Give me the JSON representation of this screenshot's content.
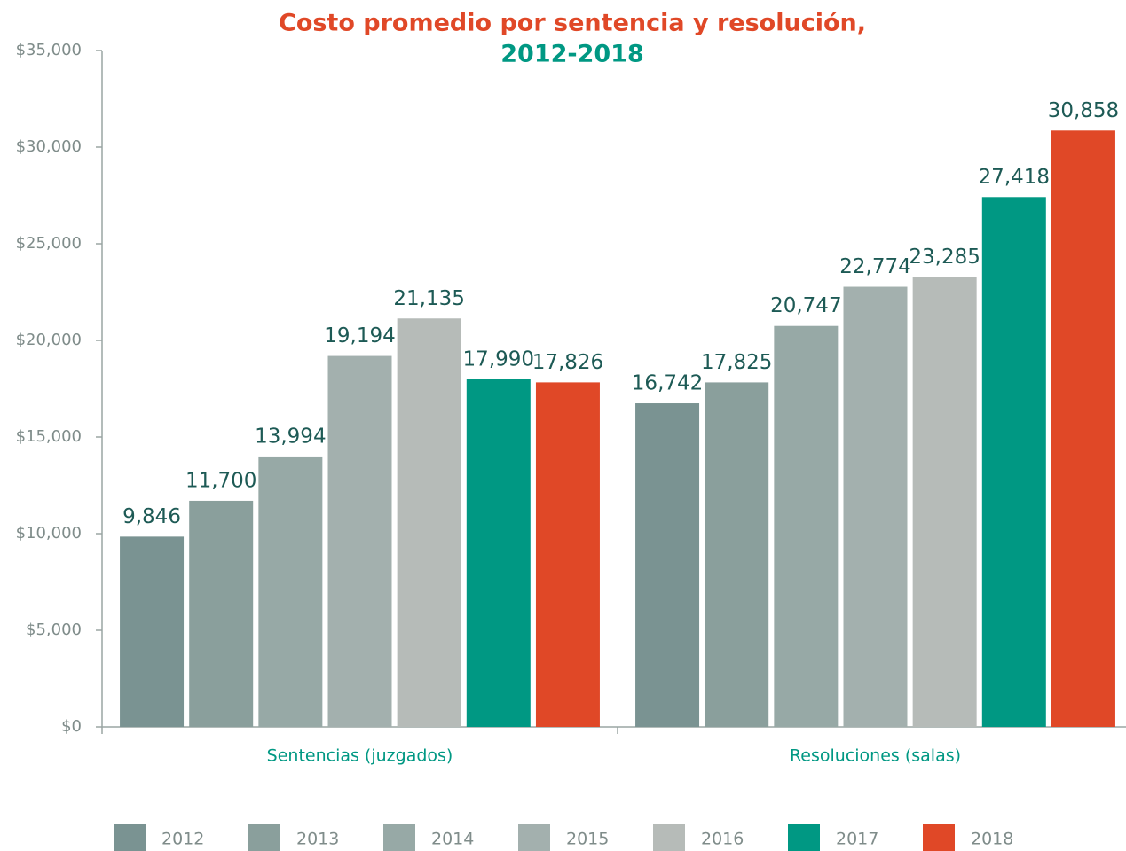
{
  "chart_data": {
    "type": "bar",
    "title": "Costo promedio por sentencia y resolución,",
    "subtitle": "2012-2018",
    "categories": [
      "Sentencias (juzgados)",
      "Resoluciones (salas)"
    ],
    "series": [
      {
        "name": "2012",
        "color": "#7a9392",
        "values": [
          9846,
          16742
        ],
        "value_labels": [
          "9,846",
          "16,742"
        ]
      },
      {
        "name": "2013",
        "color": "#8a9f9c",
        "values": [
          11700,
          17825
        ],
        "value_labels": [
          "11,700",
          "17,825"
        ]
      },
      {
        "name": "2014",
        "color": "#97a9a6",
        "values": [
          13994,
          20747
        ],
        "value_labels": [
          "13,994",
          "20,747"
        ]
      },
      {
        "name": "2015",
        "color": "#a3b0ae",
        "values": [
          19194,
          22774
        ],
        "value_labels": [
          "19,194",
          "22,774"
        ]
      },
      {
        "name": "2016",
        "color": "#b6bbb8",
        "values": [
          21135,
          23285
        ],
        "value_labels": [
          "21,135",
          "23,285"
        ]
      },
      {
        "name": "2017",
        "color": "#009883",
        "values": [
          17990,
          27418
        ],
        "value_labels": [
          "17,990",
          "27,418"
        ]
      },
      {
        "name": "2018",
        "color": "#e04827",
        "values": [
          17826,
          30858
        ],
        "value_labels": [
          "17,826",
          "30,858"
        ]
      }
    ],
    "ylim": [
      0,
      35000
    ],
    "yticks": [
      {
        "value": 0,
        "label": "$0"
      },
      {
        "value": 5000,
        "label": "$5,000"
      },
      {
        "value": 10000,
        "label": "$10,000"
      },
      {
        "value": 15000,
        "label": "$15,000"
      },
      {
        "value": 20000,
        "label": "$20,000"
      },
      {
        "value": 25000,
        "label": "$25,000"
      },
      {
        "value": 30000,
        "label": "$30,000"
      },
      {
        "value": 35000,
        "label": "$35,000"
      }
    ],
    "legend": "bottom"
  }
}
